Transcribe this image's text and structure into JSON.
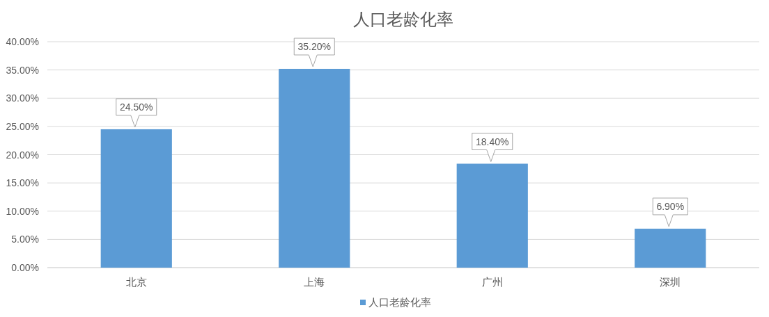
{
  "chart_data": {
    "type": "bar",
    "title": "人口老龄化率",
    "categories": [
      "北京",
      "上海",
      "广州",
      "深圳"
    ],
    "series": [
      {
        "name": "人口老龄化率",
        "color": "#5b9bd5",
        "values": [
          24.5,
          35.2,
          18.4,
          6.9
        ],
        "value_labels": [
          "24.50%",
          "35.20%",
          "18.40%",
          "6.90%"
        ]
      }
    ],
    "ylim": [
      0,
      40
    ],
    "yticks": [
      {
        "value": 0,
        "label": "0.00%"
      },
      {
        "value": 5,
        "label": "5.00%"
      },
      {
        "value": 10,
        "label": "10.00%"
      },
      {
        "value": 15,
        "label": "15.00%"
      },
      {
        "value": 20,
        "label": "20.00%"
      },
      {
        "value": 25,
        "label": "25.00%"
      },
      {
        "value": 30,
        "label": "30.00%"
      },
      {
        "value": 35,
        "label": "35.00%"
      },
      {
        "value": 40,
        "label": "40.00%"
      }
    ],
    "grid": "y",
    "legend": "bottom"
  }
}
